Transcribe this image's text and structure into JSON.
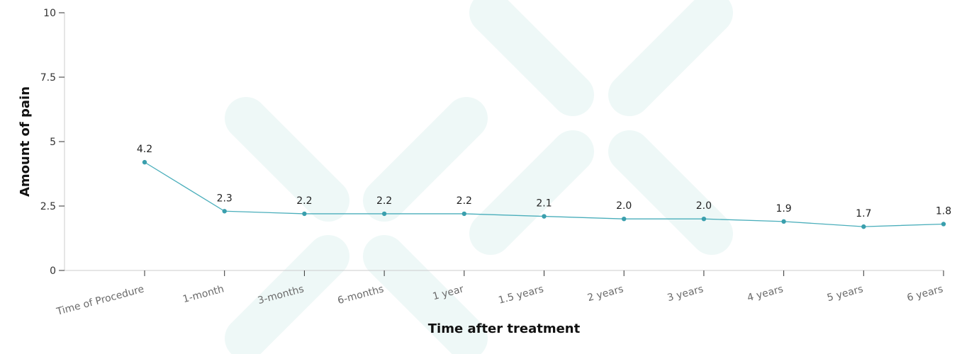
{
  "chart_data": {
    "type": "line",
    "title": "",
    "xlabel": "Time after treatment",
    "ylabel": "Amount of pain",
    "categories": [
      "Time of Procedure",
      "1-month",
      "3-months",
      "6-months",
      "1 year",
      "1.5 years",
      "2 years",
      "3 years",
      "4 years",
      "5 years",
      "6 years"
    ],
    "series": [
      {
        "values": [
          4.2,
          2.3,
          2.2,
          2.2,
          2.2,
          2.1,
          2.0,
          2.0,
          1.9,
          1.7,
          1.8
        ],
        "labels": [
          "4.2",
          "2.3",
          "2.2",
          "2.2",
          "2.2",
          "2.1",
          "2.0",
          "2.0",
          "1.9",
          "1.7",
          "1.8"
        ]
      }
    ],
    "ylim": [
      0,
      10
    ],
    "yticks": [
      0,
      2.5,
      5,
      7.5,
      10
    ],
    "ytick_labels": [
      "0",
      "2.5",
      "5",
      "7.5",
      "10"
    ],
    "grid": false,
    "legend": "none",
    "colors": {
      "line": "#4aaebb",
      "point": "#3a9fad",
      "axis": "#cccccc",
      "watermark": "#eef8f7"
    }
  }
}
